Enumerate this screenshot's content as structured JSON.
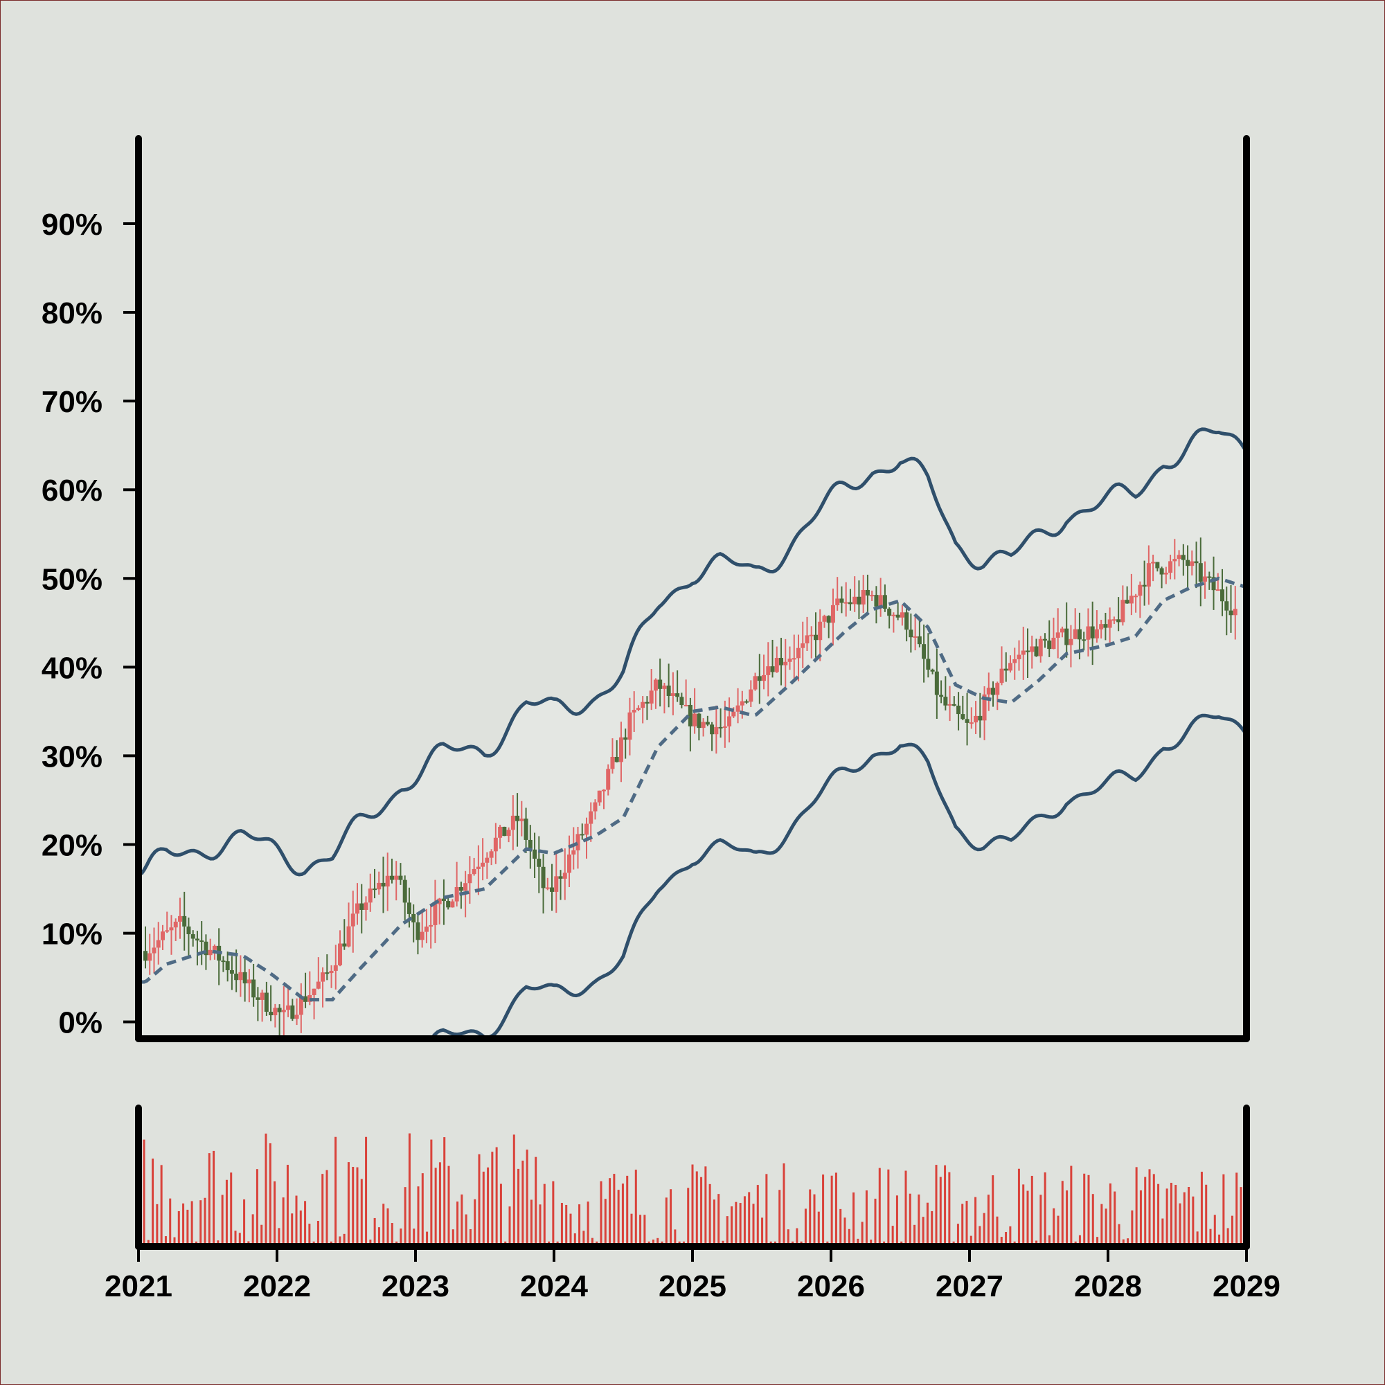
{
  "chart_data": {
    "type": "candlestick",
    "title": "",
    "xlabel": "",
    "ylabel": "",
    "xlim": [
      2021,
      2029
    ],
    "ylim": [
      -1.9,
      99.6
    ],
    "y_ticks": [
      0,
      10,
      20,
      30,
      40,
      50,
      60,
      70,
      80,
      90
    ],
    "y_tick_labels": [
      "0%",
      "10%",
      "20%",
      "30%",
      "40%",
      "50%",
      "60%",
      "70%",
      "80%",
      "90%"
    ],
    "x_ticks": [
      2021,
      2022,
      2023,
      2024,
      2025,
      2026,
      2027,
      2028,
      2029
    ],
    "x_tick_labels": [
      "2021",
      "2022",
      "2023",
      "2024",
      "2025",
      "2026",
      "2027",
      "2028",
      "2029"
    ],
    "grid": false,
    "legend": "none",
    "colors": {
      "up": "#e06666",
      "down": "#4a6b3a",
      "bands": "#2f4f6b",
      "middle": "#4f6b85",
      "band_fill": "#e4e7e3",
      "volume": "#d9423a",
      "background": "#dfe2dd",
      "axes": "#000000"
    },
    "price_anchors": {
      "x": [
        2021.05,
        2021.3,
        2021.6,
        2021.85,
        2022.05,
        2022.35,
        2022.6,
        2022.85,
        2023.0,
        2023.3,
        2023.55,
        2023.75,
        2023.95,
        2024.3,
        2024.55,
        2024.75,
        2025.0,
        2025.25,
        2025.5,
        2025.8,
        2026.05,
        2026.3,
        2026.55,
        2026.8,
        2027.0,
        2027.3,
        2027.6,
        2027.8,
        2028.0,
        2028.3,
        2028.55,
        2028.75,
        2028.95
      ],
      "y": [
        8,
        11,
        7,
        3,
        0.5,
        5,
        13,
        17,
        10,
        15,
        20,
        23,
        14,
        24,
        34,
        38,
        34,
        33,
        40,
        42,
        47,
        48,
        45,
        36,
        33,
        41,
        43,
        44,
        44,
        51,
        52,
        49,
        46
      ]
    },
    "middle_band": {
      "x": [
        2021.05,
        2021.2,
        2021.5,
        2021.75,
        2021.95,
        2022.2,
        2022.4,
        2022.6,
        2022.9,
        2023.2,
        2023.5,
        2023.8,
        2024.0,
        2024.3,
        2024.5,
        2024.75,
        2025.0,
        2025.2,
        2025.45,
        2025.7,
        2025.9,
        2026.1,
        2026.3,
        2026.5,
        2026.7,
        2026.9,
        2027.1,
        2027.3,
        2027.5,
        2027.7,
        2028.0,
        2028.2,
        2028.4,
        2028.6,
        2028.8,
        2029.0
      ],
      "y": [
        4.5,
        6.5,
        8,
        7.5,
        5.5,
        2.5,
        2.5,
        6,
        11,
        14,
        15,
        19.5,
        19,
        21,
        23,
        31,
        35,
        35.5,
        34.5,
        38,
        41,
        44,
        46.5,
        47.5,
        44.5,
        38,
        36.5,
        36,
        38.5,
        41.5,
        42.5,
        43.5,
        47.5,
        49,
        50,
        49
      ]
    },
    "band_width": [
      12,
      12,
      12,
      13,
      14,
      15.5,
      16,
      16,
      16,
      16,
      16,
      16,
      16,
      16,
      16,
      16,
      16,
      16,
      16,
      16,
      16,
      16,
      16,
      16,
      16,
      16,
      16,
      16,
      16,
      16,
      16,
      16,
      16,
      16,
      16,
      16
    ],
    "volume": {
      "x_start": 2021.04,
      "x_end": 2028.96,
      "count": 253,
      "max": 1.0,
      "trend": "higher in 2021-2023, lower from 2024 onward"
    }
  }
}
